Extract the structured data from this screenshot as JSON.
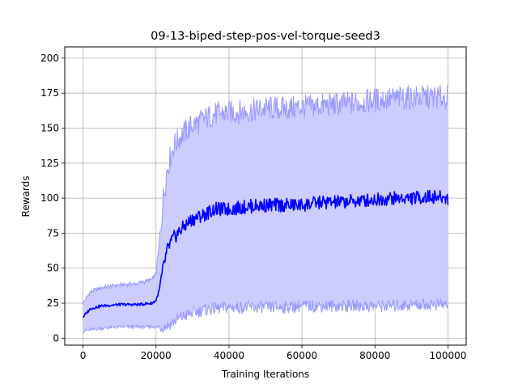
{
  "chart_data": {
    "type": "line",
    "title": "09-13-biped-step-pos-vel-torque-seed3",
    "xlabel": "Training Iterations",
    "ylabel": "Rewards",
    "xlim": [
      -5000,
      105000
    ],
    "ylim": [
      -5,
      208
    ],
    "x_ticks": [
      0,
      20000,
      40000,
      60000,
      80000,
      100000
    ],
    "x_tick_labels": [
      "0",
      "20000",
      "40000",
      "60000",
      "80000",
      "100000"
    ],
    "y_ticks": [
      0,
      25,
      50,
      75,
      100,
      125,
      150,
      175,
      200
    ],
    "y_tick_labels": [
      "0",
      "25",
      "50",
      "75",
      "100",
      "125",
      "150",
      "175",
      "200"
    ],
    "grid": true,
    "colors": {
      "mean_line": "#0000ff",
      "band_fill": "#ccccff",
      "band_edge": "#9999ff",
      "grid": "#b0b0b0"
    },
    "series": [
      {
        "role": "mean",
        "x": [
          0,
          2000,
          5000,
          10000,
          15000,
          19000,
          20000,
          21000,
          22000,
          23000,
          24000,
          25000,
          27000,
          30000,
          33000,
          36000,
          40000,
          45000,
          50000,
          55000,
          60000,
          65000,
          70000,
          75000,
          80000,
          85000,
          90000,
          95000,
          100000
        ],
        "values": [
          15,
          21,
          23,
          24,
          24,
          25,
          27,
          35,
          50,
          62,
          68,
          72,
          78,
          85,
          88,
          92,
          92,
          94,
          95,
          95,
          95,
          97,
          97,
          98,
          99,
          100,
          100,
          101,
          100
        ]
      },
      {
        "role": "upper",
        "x": [
          0,
          2000,
          5000,
          10000,
          15000,
          19000,
          20000,
          21000,
          22000,
          23000,
          24000,
          25000,
          27000,
          30000,
          33000,
          36000,
          40000,
          45000,
          50000,
          55000,
          60000,
          65000,
          70000,
          75000,
          80000,
          85000,
          90000,
          95000,
          100000
        ],
        "values": [
          25,
          33,
          36,
          38,
          39,
          42,
          46,
          70,
          100,
          120,
          130,
          138,
          145,
          152,
          156,
          160,
          161,
          162,
          164,
          164,
          165,
          166,
          167,
          168,
          170,
          171,
          172,
          172,
          172
        ]
      },
      {
        "role": "lower",
        "x": [
          0,
          2000,
          5000,
          10000,
          15000,
          19000,
          20000,
          21000,
          22000,
          23000,
          24000,
          25000,
          27000,
          30000,
          33000,
          36000,
          40000,
          45000,
          50000,
          55000,
          60000,
          65000,
          70000,
          75000,
          80000,
          85000,
          90000,
          95000,
          100000
        ],
        "values": [
          5,
          6,
          7,
          8,
          8,
          8,
          8,
          8,
          8,
          9,
          10,
          12,
          15,
          18,
          20,
          21,
          22,
          22,
          22,
          22,
          23,
          23,
          23,
          23,
          23,
          23,
          24,
          24,
          24
        ]
      }
    ]
  }
}
